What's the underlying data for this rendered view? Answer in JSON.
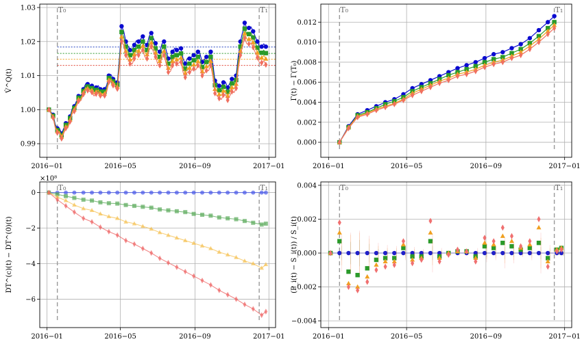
{
  "chart_data": [
    {
      "type": "line",
      "ylabel": "V̂^Q(t)",
      "ylabel_svg": "Ṽ",
      "ylabel_sup": "Q",
      "ylabel_tail": "(t)",
      "xlim": [
        "2015-12-20",
        "2017-01-12"
      ],
      "xticks": [
        "2016-01",
        "2016-05",
        "2016-09",
        "2017-01"
      ],
      "ylim": [
        0.986,
        1.031
      ],
      "yticks": [
        0.99,
        1.0,
        1.01,
        1.02,
        1.03
      ],
      "ytick_labels": [
        "0.99",
        "1.00",
        "1.01",
        "1.02",
        "1.03"
      ],
      "grid": true,
      "vlines": [
        {
          "x": "2016-01-18",
          "label": "T₀"
        },
        {
          "x": "2016-12-16",
          "label": "T₁"
        }
      ],
      "hlines": [
        {
          "y": 1.0184,
          "color": "#1f3fbf"
        },
        {
          "y": 1.0165,
          "color": "#2a9a2a"
        },
        {
          "y": 1.0148,
          "color": "#f0a020"
        },
        {
          "y": 1.013,
          "color": "#e04030"
        }
      ],
      "x": [
        "2016-01-04",
        "2016-01-11",
        "2016-01-18",
        "2016-01-25",
        "2016-02-01",
        "2016-02-08",
        "2016-02-15",
        "2016-02-22",
        "2016-03-01",
        "2016-03-08",
        "2016-03-15",
        "2016-03-22",
        "2016-03-29",
        "2016-04-05",
        "2016-04-12",
        "2016-04-19",
        "2016-04-26",
        "2016-05-03",
        "2016-05-10",
        "2016-05-17",
        "2016-05-24",
        "2016-05-31",
        "2016-06-07",
        "2016-06-14",
        "2016-06-21",
        "2016-06-28",
        "2016-07-05",
        "2016-07-12",
        "2016-07-19",
        "2016-07-26",
        "2016-08-02",
        "2016-08-09",
        "2016-08-16",
        "2016-08-23",
        "2016-08-30",
        "2016-09-06",
        "2016-09-13",
        "2016-09-20",
        "2016-09-27",
        "2016-10-04",
        "2016-10-11",
        "2016-10-18",
        "2016-10-25",
        "2016-11-01",
        "2016-11-08",
        "2016-11-15",
        "2016-11-22",
        "2016-11-29",
        "2016-12-06",
        "2016-12-13",
        "2016-12-20",
        "2016-12-27"
      ],
      "series": [
        {
          "color": "#0a0ad0",
          "marker": "circle",
          "values": [
            1.0,
            0.9985,
            0.9945,
            0.993,
            0.996,
            0.998,
            1.001,
            1.004,
            1.006,
            1.0075,
            1.007,
            1.0065,
            1.006,
            1.006,
            1.01,
            1.009,
            1.008,
            1.0245,
            1.02,
            1.0175,
            1.019,
            1.02,
            1.0215,
            1.019,
            1.0225,
            1.0195,
            1.017,
            1.02,
            1.015,
            1.017,
            1.0175,
            1.018,
            1.0135,
            1.015,
            1.016,
            1.017,
            1.014,
            1.0155,
            1.017,
            1.0085,
            1.007,
            1.008,
            1.0065,
            1.009,
            1.01,
            1.02,
            1.0255,
            1.024,
            1.023,
            1.02,
            1.0185,
            1.0185
          ]
        },
        {
          "color": "#2a9a2a",
          "marker": "square",
          "values": [
            1.0,
            0.9982,
            0.994,
            0.9925,
            0.9955,
            0.9975,
            1.0005,
            1.0035,
            1.0055,
            1.0068,
            1.0063,
            1.0058,
            1.0053,
            1.0053,
            1.0093,
            1.0083,
            1.0073,
            1.0228,
            1.0185,
            1.016,
            1.0175,
            1.0185,
            1.02,
            1.0175,
            1.021,
            1.018,
            1.0155,
            1.0185,
            1.0135,
            1.0155,
            1.016,
            1.0165,
            1.012,
            1.0135,
            1.0145,
            1.0155,
            1.0125,
            1.014,
            1.0155,
            1.0072,
            1.0057,
            1.0067,
            1.0052,
            1.0077,
            1.0087,
            1.0185,
            1.0238,
            1.0222,
            1.0212,
            1.0182,
            1.0167,
            1.0166
          ]
        },
        {
          "color": "#f0a020",
          "marker": "triangle",
          "values": [
            1.0,
            0.9979,
            0.9936,
            0.992,
            0.995,
            0.997,
            1.0,
            1.003,
            1.005,
            1.0062,
            1.0057,
            1.0052,
            1.0047,
            1.0047,
            1.0087,
            1.0077,
            1.0067,
            1.0214,
            1.0172,
            1.0147,
            1.0162,
            1.0172,
            1.0187,
            1.0162,
            1.0197,
            1.0167,
            1.0142,
            1.0172,
            1.0122,
            1.0142,
            1.0147,
            1.0152,
            1.0107,
            1.0122,
            1.0132,
            1.0142,
            1.0112,
            1.0127,
            1.0142,
            1.006,
            1.0045,
            1.0055,
            1.004,
            1.0065,
            1.0075,
            1.0172,
            1.0224,
            1.0207,
            1.0197,
            1.0167,
            1.0152,
            1.0149
          ]
        },
        {
          "color": "#f07060",
          "marker": "diamond",
          "values": [
            1.0,
            0.9976,
            0.9932,
            0.9915,
            0.9945,
            0.9965,
            0.9995,
            1.0025,
            1.0045,
            1.0056,
            1.0051,
            1.0046,
            1.0041,
            1.0041,
            1.0081,
            1.0071,
            1.0061,
            1.02,
            1.016,
            1.0135,
            1.015,
            1.016,
            1.0175,
            1.015,
            1.0185,
            1.0155,
            1.013,
            1.016,
            1.011,
            1.013,
            1.0135,
            1.014,
            1.0095,
            1.011,
            1.012,
            1.013,
            1.01,
            1.0115,
            1.013,
            1.0048,
            1.0033,
            1.0043,
            1.0028,
            1.0053,
            1.0063,
            1.016,
            1.021,
            1.0193,
            1.0183,
            1.0153,
            1.0138,
            1.0132
          ]
        }
      ]
    },
    {
      "type": "line",
      "ylabel": "Γ(t) − Γ(T₀)",
      "xlim": [
        "2015-12-20",
        "2017-01-12"
      ],
      "xticks": [
        "2016-01",
        "2016-05",
        "2016-09",
        "2017-01"
      ],
      "ylim": [
        -0.0015,
        0.0138
      ],
      "yticks": [
        0.0,
        0.002,
        0.004,
        0.006,
        0.008,
        0.01,
        0.012
      ],
      "ytick_labels": [
        "0.000",
        "0.002",
        "0.004",
        "0.006",
        "0.008",
        "0.010",
        "0.012"
      ],
      "grid": true,
      "vlines": [
        {
          "x": "2016-01-18",
          "label": "T₀"
        },
        {
          "x": "2016-12-16",
          "label": "T₁"
        }
      ],
      "x": [
        "2016-01-18",
        "2016-02-01",
        "2016-02-15",
        "2016-03-01",
        "2016-03-15",
        "2016-03-29",
        "2016-04-12",
        "2016-04-26",
        "2016-05-10",
        "2016-05-24",
        "2016-06-07",
        "2016-06-21",
        "2016-07-05",
        "2016-07-19",
        "2016-08-02",
        "2016-08-16",
        "2016-08-30",
        "2016-09-13",
        "2016-09-27",
        "2016-10-11",
        "2016-10-25",
        "2016-11-08",
        "2016-11-22",
        "2016-12-06",
        "2016-12-16"
      ],
      "series": [
        {
          "color": "#0a0ad0",
          "marker": "circle",
          "values": [
            0.0,
            0.0016,
            0.0028,
            0.0032,
            0.0036,
            0.004,
            0.0043,
            0.0048,
            0.0054,
            0.0058,
            0.0062,
            0.0066,
            0.007,
            0.0074,
            0.0077,
            0.008,
            0.0084,
            0.0088,
            0.009,
            0.0094,
            0.0098,
            0.0104,
            0.0112,
            0.012,
            0.0126
          ]
        },
        {
          "color": "#2a9a2a",
          "marker": "square",
          "values": [
            0.0,
            0.0015,
            0.0027,
            0.003,
            0.0034,
            0.0038,
            0.0041,
            0.0045,
            0.0051,
            0.0055,
            0.0059,
            0.0063,
            0.0067,
            0.007,
            0.0073,
            0.0076,
            0.008,
            0.0083,
            0.0085,
            0.0089,
            0.0093,
            0.0099,
            0.0106,
            0.0114,
            0.012
          ]
        },
        {
          "color": "#f0a020",
          "marker": "triangle",
          "values": [
            0.0,
            0.0015,
            0.0026,
            0.0029,
            0.0033,
            0.0036,
            0.0039,
            0.0043,
            0.0049,
            0.0053,
            0.0057,
            0.0061,
            0.0064,
            0.0068,
            0.007,
            0.0073,
            0.0077,
            0.008,
            0.0082,
            0.0086,
            0.009,
            0.0096,
            0.0103,
            0.0111,
            0.0117
          ]
        },
        {
          "color": "#f07060",
          "marker": "diamond",
          "values": [
            0.0,
            0.0014,
            0.0025,
            0.0028,
            0.0032,
            0.0035,
            0.0038,
            0.0042,
            0.0047,
            0.0051,
            0.0055,
            0.0059,
            0.0062,
            0.0066,
            0.0068,
            0.0071,
            0.0075,
            0.0078,
            0.008,
            0.0084,
            0.0087,
            0.0093,
            0.01,
            0.0108,
            0.0114
          ]
        }
      ]
    },
    {
      "type": "line",
      "ylabel": "DT^(c)(t) − DT^(0)(t)",
      "offset_text": "×10⁸",
      "xlim": [
        "2015-12-20",
        "2017-01-12"
      ],
      "xticks": [
        "2016-01",
        "2016-05",
        "2016-09",
        "2017-01"
      ],
      "ylim": [
        -7.6,
        0.6
      ],
      "yticks": [
        0,
        -2,
        -4,
        -6
      ],
      "ytick_labels": [
        "0",
        "−2",
        "−4",
        "−6"
      ],
      "grid": true,
      "vlines": [
        {
          "x": "2016-01-18",
          "label": "T₀"
        },
        {
          "x": "2016-12-16",
          "label": "T₁"
        }
      ],
      "x": [
        "2016-01-04",
        "2016-01-18",
        "2016-02-01",
        "2016-02-15",
        "2016-03-01",
        "2016-03-15",
        "2016-03-29",
        "2016-04-12",
        "2016-04-26",
        "2016-05-10",
        "2016-05-24",
        "2016-06-07",
        "2016-06-21",
        "2016-07-05",
        "2016-07-19",
        "2016-08-02",
        "2016-08-16",
        "2016-08-30",
        "2016-09-13",
        "2016-09-27",
        "2016-10-11",
        "2016-10-25",
        "2016-11-08",
        "2016-11-22",
        "2016-12-06",
        "2016-12-20",
        "2016-12-27"
      ],
      "series": [
        {
          "color": "#4a5ae8",
          "marker": "circle",
          "values": [
            0,
            0,
            0,
            0,
            0,
            0,
            0,
            0,
            0,
            0,
            0,
            0,
            0,
            0,
            0,
            0,
            0,
            0,
            0,
            0,
            0,
            0,
            0,
            0,
            0,
            0,
            0
          ]
        },
        {
          "color": "#5aaa5a",
          "marker": "square",
          "values": [
            0,
            -0.1,
            -0.2,
            -0.3,
            -0.4,
            -0.45,
            -0.55,
            -0.6,
            -0.62,
            -0.7,
            -0.75,
            -0.8,
            -0.85,
            -0.95,
            -1.0,
            -1.05,
            -1.1,
            -1.2,
            -1.25,
            -1.3,
            -1.4,
            -1.45,
            -1.5,
            -1.6,
            -1.7,
            -1.8,
            -1.75
          ]
        },
        {
          "color": "#f5c050",
          "marker": "triangle",
          "values": [
            0,
            -0.25,
            -0.45,
            -0.7,
            -0.9,
            -1.0,
            -1.2,
            -1.35,
            -1.45,
            -1.65,
            -1.75,
            -1.9,
            -2.05,
            -2.25,
            -2.4,
            -2.55,
            -2.7,
            -2.85,
            -3.0,
            -3.15,
            -3.35,
            -3.5,
            -3.65,
            -3.85,
            -4.0,
            -4.25,
            -4.05
          ]
        },
        {
          "color": "#ee6060",
          "marker": "diamond",
          "values": [
            0,
            -0.4,
            -0.75,
            -1.1,
            -1.45,
            -1.65,
            -1.95,
            -2.2,
            -2.4,
            -2.7,
            -2.9,
            -3.15,
            -3.4,
            -3.7,
            -3.95,
            -4.2,
            -4.45,
            -4.7,
            -4.95,
            -5.2,
            -5.5,
            -5.75,
            -6.0,
            -6.3,
            -6.55,
            -6.9,
            -6.7
          ]
        }
      ]
    },
    {
      "type": "scatter",
      "ylabel": "(P_i(t) − S_i(t)) / S_i(t)",
      "xlim": [
        "2015-12-20",
        "2017-01-12"
      ],
      "xticks": [
        "2016-01",
        "2016-05",
        "2016-09",
        "2017-01"
      ],
      "ylim": [
        -0.0044,
        0.0042
      ],
      "yticks": [
        0.004,
        0.002,
        0.0,
        -0.002,
        -0.004
      ],
      "ytick_labels": [
        "0.004",
        "0.002",
        "0.000",
        "−0.002",
        "−0.004"
      ],
      "grid": true,
      "vlines": [
        {
          "x": "2016-01-18",
          "label": "T₀"
        },
        {
          "x": "2016-12-16",
          "label": "T₁"
        }
      ],
      "x": [
        "2016-01-04",
        "2016-01-18",
        "2016-02-01",
        "2016-02-15",
        "2016-03-01",
        "2016-03-15",
        "2016-03-29",
        "2016-04-12",
        "2016-04-26",
        "2016-05-10",
        "2016-05-24",
        "2016-06-07",
        "2016-06-21",
        "2016-07-05",
        "2016-07-19",
        "2016-08-02",
        "2016-08-16",
        "2016-08-30",
        "2016-09-13",
        "2016-09-27",
        "2016-10-11",
        "2016-10-25",
        "2016-11-08",
        "2016-11-22",
        "2016-12-06",
        "2016-12-20",
        "2016-12-27"
      ],
      "series": [
        {
          "color": "#2020c8",
          "marker": "circle",
          "values": [
            0,
            0,
            0,
            0,
            0,
            0,
            0,
            0,
            0,
            0,
            0,
            0,
            0,
            0,
            0,
            0,
            0,
            0,
            0,
            0,
            0,
            0,
            0,
            0,
            0,
            0,
            0
          ]
        },
        {
          "color": "#2a9a2a",
          "marker": "square",
          "values": [
            0,
            0.0007,
            -0.0011,
            -0.0013,
            -0.0009,
            -0.0004,
            -0.0003,
            -0.0003,
            0.0003,
            -0.0002,
            -0.0002,
            0.0007,
            -0.0002,
            0.0,
            0.0001,
            0.0001,
            -0.0002,
            0.0004,
            0.0003,
            0.0006,
            0.0004,
            0.0002,
            0.0003,
            0.0006,
            -0.0003,
            0.0002,
            0.0003
          ]
        },
        {
          "color": "#f0a020",
          "marker": "triangle",
          "values": [
            0,
            0.0012,
            -0.0018,
            -0.002,
            -0.0014,
            -0.0007,
            -0.0005,
            -0.0005,
            0.0005,
            -0.0004,
            -0.0003,
            0.0012,
            -0.0003,
            0.0,
            0.0001,
            0.0001,
            -0.0003,
            0.0006,
            0.0005,
            0.001,
            0.0007,
            0.0003,
            0.0005,
            0.0015,
            -0.0005,
            0.0002,
            0.0003
          ]
        },
        {
          "color": "#f07070",
          "marker": "diamond",
          "values": [
            0,
            0.0018,
            -0.002,
            -0.0022,
            -0.0017,
            -0.001,
            -0.0008,
            -0.0007,
            0.0007,
            -0.0006,
            -0.0004,
            0.0019,
            -0.0005,
            -0.0001,
            0.0002,
            0.0001,
            -0.0005,
            0.0009,
            0.0007,
            0.0015,
            0.001,
            0.0004,
            0.0007,
            0.002,
            -0.0008,
            0.0001,
            0.0002
          ]
        }
      ]
    }
  ]
}
